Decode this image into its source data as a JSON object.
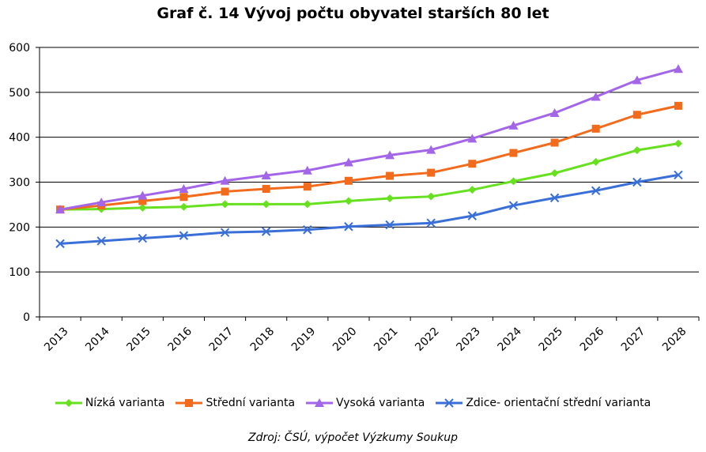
{
  "chart_data": {
    "type": "line",
    "title": "Graf č. 14 Vývoj počtu obyvatel starších 80 let",
    "xlabel": "",
    "ylabel": "",
    "ylim": [
      0,
      600
    ],
    "yticks": [
      0,
      100,
      200,
      300,
      400,
      500,
      600
    ],
    "grid": true,
    "legend_position": "bottom",
    "categories": [
      "2013",
      "2014",
      "2015",
      "2016",
      "2017",
      "2018",
      "2019",
      "2020",
      "2021",
      "2022",
      "2023",
      "2024",
      "2025",
      "2026",
      "2027",
      "2028"
    ],
    "series": [
      {
        "name": "Nízká varianta",
        "color": "#66e01f",
        "marker": "diamond",
        "values": [
          239,
          240,
          243,
          245,
          251,
          251,
          251,
          258,
          264,
          268,
          283,
          302,
          320,
          345,
          371,
          386
        ]
      },
      {
        "name": "Střední varianta",
        "color": "#f26a1b",
        "marker": "square",
        "values": [
          239,
          248,
          258,
          267,
          279,
          285,
          290,
          303,
          314,
          321,
          341,
          365,
          388,
          419,
          450,
          470
        ]
      },
      {
        "name": "Vysoká varianta",
        "color": "#a366e8",
        "marker": "triangle",
        "values": [
          239,
          255,
          270,
          285,
          303,
          315,
          326,
          344,
          360,
          372,
          397,
          426,
          454,
          490,
          527,
          552
        ]
      },
      {
        "name": "Zdice- orientační střední varianta",
        "color": "#3a6fd8",
        "marker": "x",
        "values": [
          163,
          169,
          175,
          181,
          188,
          190,
          194,
          201,
          205,
          209,
          225,
          248,
          265,
          281,
          300,
          316
        ]
      }
    ]
  },
  "source": "Zdroj: ČSÚ, výpočet Výzkumy Soukup"
}
